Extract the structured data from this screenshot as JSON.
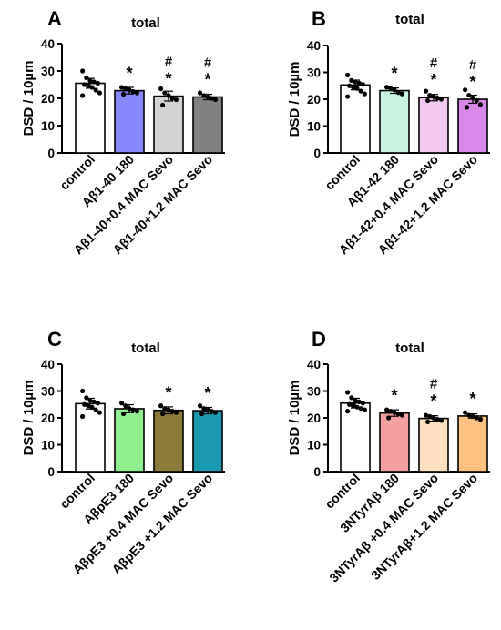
{
  "chart_data": [
    {
      "type": "bar",
      "panel": "A",
      "title": "total",
      "ylabel": "DSD / 10µm",
      "ylim": [
        0,
        40
      ],
      "yticks": [
        "0",
        "10",
        "20",
        "30",
        "40"
      ],
      "categories": [
        "control",
        "Aβ1-40 180",
        "Aβ1-40+0.4 MAC Sevo",
        "Aβ1-40+1.2 MAC Sevo"
      ],
      "values": [
        25.5,
        22.8,
        20.8,
        20.5
      ],
      "errors": [
        1.8,
        1.2,
        1.8,
        1.0
      ],
      "colors": [
        "#ffffff",
        "#8888ff",
        "#d3d3d3",
        "#808080"
      ],
      "points": [
        [
          30,
          27.5,
          26.5,
          26,
          25.5,
          25,
          24.5,
          24,
          23,
          22,
          21
        ],
        [
          24,
          23.5,
          23,
          22.5,
          22,
          21.5
        ],
        [
          23.5,
          22,
          21,
          20,
          19.5,
          17.5
        ],
        [
          22,
          21,
          20.5,
          20,
          19.5
        ]
      ],
      "star": [
        false,
        true,
        true,
        true
      ],
      "hash": [
        false,
        false,
        true,
        true
      ]
    },
    {
      "type": "bar",
      "panel": "B",
      "title": "total",
      "ylabel": "DSD / 10µm",
      "ylim": [
        0,
        40
      ],
      "yticks": [
        "0",
        "10",
        "20",
        "30",
        "40"
      ],
      "categories": [
        "control",
        "Aβ1-42 180",
        "Aβ1-42+0.4 MAC Sevo",
        "Aβ1-42+1.2 MAC Sevo"
      ],
      "values": [
        25.3,
        23.2,
        20.6,
        20.0
      ],
      "errors": [
        1.8,
        1.0,
        1.2,
        1.5
      ],
      "colors": [
        "#ffffff",
        "#c8f5e0",
        "#f0c8f0",
        "#d98ae8"
      ],
      "points": [
        [
          29,
          27,
          26.5,
          26,
          25.5,
          25,
          24.5,
          24,
          23,
          22,
          21
        ],
        [
          24.5,
          24,
          23.5,
          22.5,
          22
        ],
        [
          23,
          21.5,
          21,
          20.5,
          20,
          19.5
        ],
        [
          23.5,
          21.5,
          20.5,
          19.5,
          18,
          17
        ]
      ],
      "star": [
        false,
        true,
        true,
        true
      ],
      "hash": [
        false,
        false,
        true,
        true
      ]
    },
    {
      "type": "bar",
      "panel": "C",
      "title": "total",
      "ylabel": "DSD / 10µm",
      "ylim": [
        0,
        40
      ],
      "yticks": [
        "0",
        "10",
        "20",
        "30",
        "40"
      ],
      "categories": [
        "control",
        "AβpE3 180",
        "AβpE3 +0.4 MAC Sevo",
        "AβpE3 +1.2 MAC Sevo"
      ],
      "values": [
        25.3,
        23.4,
        22.8,
        22.7
      ],
      "errors": [
        2.0,
        1.5,
        1.3,
        1.2
      ],
      "colors": [
        "#ffffff",
        "#90f090",
        "#8b7a3a",
        "#1a9ab0"
      ],
      "points": [
        [
          30,
          27.5,
          26.5,
          26,
          25.5,
          25,
          24.5,
          24,
          23,
          22,
          20.5
        ],
        [
          25.5,
          24.5,
          23.5,
          23,
          22.5,
          21.5
        ],
        [
          24.5,
          23.5,
          23,
          22.5,
          22,
          21.5
        ],
        [
          24.5,
          23.5,
          23,
          22.5,
          22,
          21.5
        ]
      ],
      "star": [
        false,
        false,
        true,
        true
      ],
      "hash": [
        false,
        false,
        false,
        false
      ]
    },
    {
      "type": "bar",
      "panel": "D",
      "title": "total",
      "ylabel": "DSD / 10µm",
      "ylim": [
        0,
        40
      ],
      "yticks": [
        "0",
        "10",
        "20",
        "30",
        "40"
      ],
      "categories": [
        "control",
        "3NTyrAβ 180",
        "3NTyrAβ +0.4 MAC Sevo",
        "3NTyrAβ+1.2 MAC Sevo"
      ],
      "values": [
        25.5,
        21.8,
        19.8,
        20.7
      ],
      "errors": [
        1.8,
        1.2,
        1.0,
        0.8
      ],
      "colors": [
        "#ffffff",
        "#f4a0a0",
        "#fde0c0",
        "#fdc080"
      ],
      "points": [
        [
          29.5,
          27.5,
          26.5,
          26,
          25.5,
          25,
          24.5,
          24,
          23.5,
          23,
          22.5
        ],
        [
          23,
          22.5,
          22,
          21.5,
          21,
          20
        ],
        [
          21,
          20.5,
          20,
          19.5,
          19,
          18.5
        ],
        [
          22,
          21,
          20.5,
          20,
          19.5
        ]
      ],
      "star": [
        false,
        true,
        true,
        true
      ],
      "hash": [
        false,
        false,
        true,
        false
      ]
    }
  ]
}
